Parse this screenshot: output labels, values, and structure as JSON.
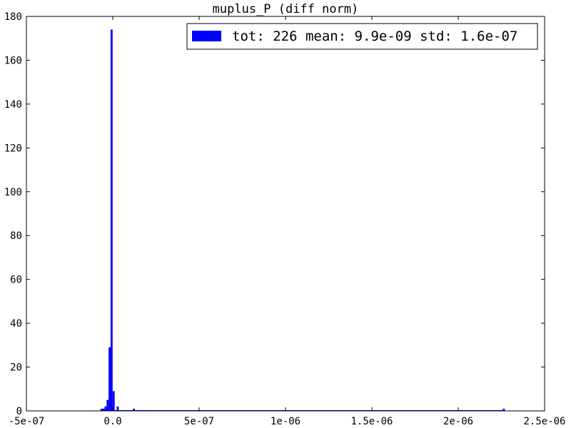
{
  "chart_data": {
    "type": "bar",
    "title": "muplus_P (diff norm)",
    "xlabel": "",
    "ylabel": "",
    "xlim": [
      -5e-07,
      2.5e-06
    ],
    "ylim": [
      0,
      180
    ],
    "x_ticks": [
      {
        "value": -5e-07,
        "label": "-5e-07"
      },
      {
        "value": 0,
        "label": "0.0"
      },
      {
        "value": 5e-07,
        "label": "5e-07"
      },
      {
        "value": 1e-06,
        "label": "1e-06"
      },
      {
        "value": 1.5e-06,
        "label": "1.5e-06"
      },
      {
        "value": 2e-06,
        "label": "2e-06"
      },
      {
        "value": 2.5e-06,
        "label": "2.5e-06"
      }
    ],
    "y_ticks": [
      {
        "value": 0,
        "label": "0"
      },
      {
        "value": 20,
        "label": "20"
      },
      {
        "value": 40,
        "label": "40"
      },
      {
        "value": 60,
        "label": "60"
      },
      {
        "value": 80,
        "label": "80"
      },
      {
        "value": 100,
        "label": "100"
      },
      {
        "value": 120,
        "label": "120"
      },
      {
        "value": 140,
        "label": "140"
      },
      {
        "value": 160,
        "label": "160"
      },
      {
        "value": 180,
        "label": "180"
      }
    ],
    "bin_range": [
      -7.1e-08,
      2.27e-06
    ],
    "bin_width": 1.17e-08,
    "series": [
      {
        "name": "tot: 226 mean: 9.9e-09 std: 1.6e-07",
        "color": "#0000ff",
        "bins": [
          {
            "x0": -7.1e-08,
            "value": 1
          },
          {
            "x0": -5.93e-08,
            "value": 1
          },
          {
            "x0": -4.76e-08,
            "value": 2
          },
          {
            "x0": -3.59e-08,
            "value": 5
          },
          {
            "x0": -2.42e-08,
            "value": 29
          },
          {
            "x0": -1.25e-08,
            "value": 174
          },
          {
            "x0": -8e-10,
            "value": 9
          },
          {
            "x0": 2.26e-08,
            "value": 2
          },
          {
            "x0": 1.163e-07,
            "value": 1
          },
          {
            "x0": 2.258e-06,
            "value": 1
          }
        ]
      }
    ],
    "legend_position": "top-right",
    "grid": false
  }
}
